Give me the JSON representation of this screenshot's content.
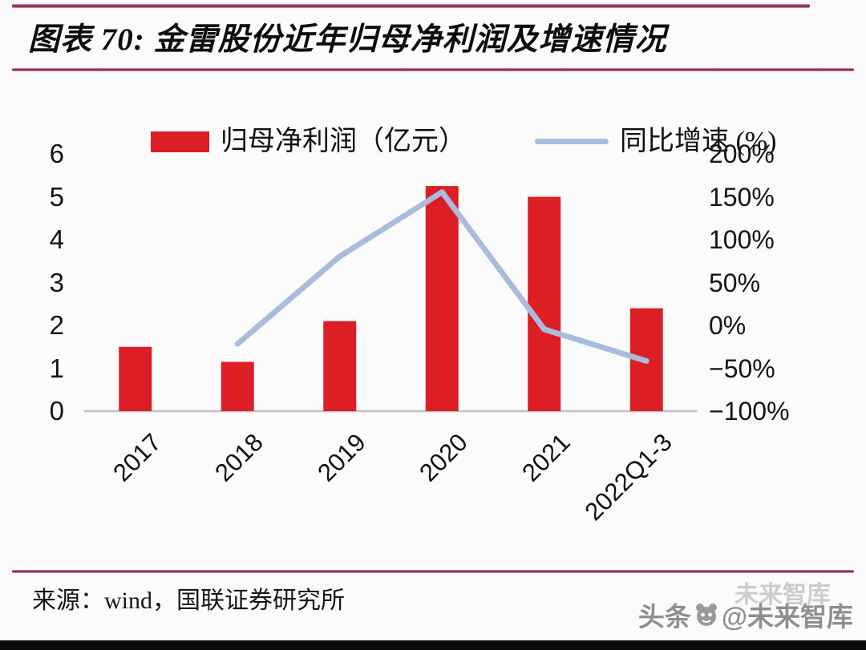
{
  "header": {
    "title": "图表 70: 金雷股份近年归母净利润及增速情况"
  },
  "legend": [
    {
      "label": "归母净利润（亿元）",
      "type": "bar",
      "color": "#dc1e26"
    },
    {
      "label": "同比增速 (%)",
      "type": "line",
      "color": "#a9bcdc"
    }
  ],
  "chart_data": {
    "type": "bar",
    "combo": "bar+line dual-axis",
    "title": "金雷股份近年归母净利润及增速情况",
    "categories": [
      "2017",
      "2018",
      "2019",
      "2020",
      "2021",
      "2022Q1-3"
    ],
    "series": [
      {
        "name": "归母净利润（亿元）",
        "type": "bar",
        "axis": "left",
        "color": "#dc1e26",
        "values": [
          1.5,
          1.15,
          2.1,
          5.25,
          5.0,
          2.4
        ]
      },
      {
        "name": "同比增速 (%)",
        "type": "line",
        "axis": "right",
        "color": "#a9bcdc",
        "values": [
          null,
          -22,
          80,
          155,
          -5,
          -42
        ]
      }
    ],
    "left_axis": {
      "label": "归母净利润（亿元）",
      "min": 0,
      "max": 6,
      "step": 1,
      "ticks_top_to_bottom": [
        "6",
        "5",
        "4",
        "3",
        "2",
        "1",
        "0"
      ]
    },
    "right_axis": {
      "label": "同比增速 (%)",
      "min": -100,
      "max": 200,
      "step": 50,
      "ticks_top_to_bottom": [
        "200%",
        "150%",
        "100%",
        "50%",
        "0%",
        "−50%",
        "−100%"
      ]
    },
    "grid": false,
    "legend_position": "top",
    "x_tick_rotation_deg": -45,
    "baseline_color": "#c2c2c2"
  },
  "footer": {
    "source": "来源：wind，国联证券研究所"
  },
  "watermark": {
    "ghost": "未来智库",
    "main_left": "头条",
    "main_right": "@未来智库"
  },
  "colors": {
    "bar": "#dc1e26",
    "line": "#a9bcdc",
    "rule": "#8e2440",
    "page_bg": "#fcfbfb"
  }
}
